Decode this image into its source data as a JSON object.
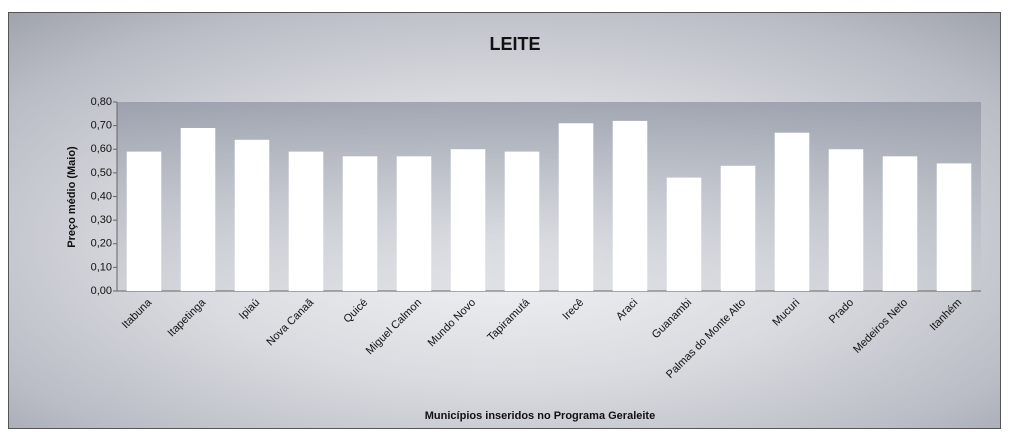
{
  "chart_data": {
    "type": "bar",
    "title": "LEITE",
    "y_label": "Preço médio (Maio)",
    "x_label": "Municípios inseridos no Programa Geraleite",
    "categories": [
      "Itabuna",
      "Itapetinga",
      "Ipiaú",
      "Nova Canaã",
      "Quicé",
      "Miguel Calmon",
      "Mundo Novo",
      "Tapiramutá",
      "Irecê",
      "Araci",
      "Guanambi",
      "Palmas do Monte Alto",
      "Mucuri",
      "Prado",
      "Medeiros Neto",
      "Itanhém"
    ],
    "values": [
      0.59,
      0.69,
      0.64,
      0.59,
      0.57,
      0.57,
      0.6,
      0.59,
      0.71,
      0.72,
      0.48,
      0.53,
      0.67,
      0.6,
      0.57,
      0.54
    ],
    "color": "#ffffff",
    "ylim": [
      0,
      0.8
    ],
    "yticks": [
      {
        "value": 0,
        "label": "0,00"
      },
      {
        "value": 0.1,
        "label": "0,10"
      },
      {
        "value": 0.2,
        "label": "0,20"
      },
      {
        "value": 0.3,
        "label": "0,30"
      },
      {
        "value": 0.4,
        "label": "0,40"
      },
      {
        "value": 0.5,
        "label": "0,50"
      },
      {
        "value": 0.6,
        "label": "0,60"
      },
      {
        "value": 0.7,
        "label": "0,70"
      },
      {
        "value": 0.8,
        "label": "0,80"
      }
    ],
    "grid": false
  }
}
